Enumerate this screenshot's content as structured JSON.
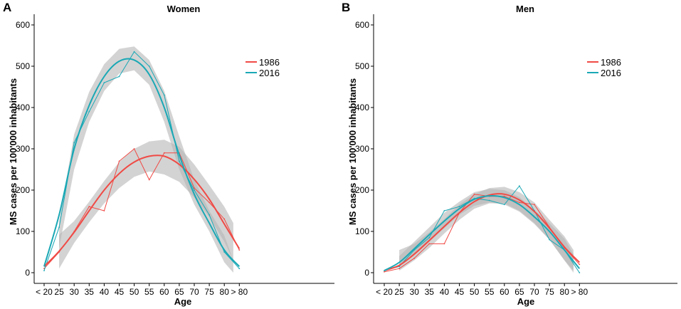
{
  "colors": {
    "s1986": "#f04a45",
    "s2016": "#1aa8b5",
    "band": "#b5b5b5"
  },
  "chart_data": [
    {
      "panel": "A",
      "title": "Women",
      "type": "line",
      "xlabel": "Age",
      "ylabel": "MS cases per 100'000 inhabitants",
      "ylim": [
        0,
        600
      ],
      "yticks": [
        0,
        100,
        200,
        300,
        400,
        500,
        600
      ],
      "categories": [
        "< 20",
        "25",
        "30",
        "35",
        "40",
        "45",
        "50",
        "55",
        "60",
        "65",
        "70",
        "75",
        "80",
        "> 80"
      ],
      "legend_position": "top-right",
      "series": [
        {
          "name": "1986",
          "color": "s1986",
          "x": [
            20,
            25,
            30,
            35,
            40,
            45,
            50,
            55,
            60,
            65,
            70,
            75,
            80,
            85
          ],
          "values": [
            10,
            50,
            100,
            160,
            150,
            270,
            300,
            225,
            290,
            290,
            205,
            170,
            130,
            55
          ],
          "fit_x": [
            20,
            25,
            30,
            35,
            40,
            45,
            50,
            55,
            60,
            65,
            70,
            75,
            80,
            85
          ],
          "fit": [
            15,
            52,
            98,
            150,
            200,
            240,
            268,
            282,
            282,
            262,
            226,
            178,
            118,
            58
          ],
          "band_x": [
            25,
            30,
            35,
            40,
            45,
            50,
            55,
            60,
            65,
            70,
            75,
            80,
            83
          ],
          "band_lo": [
            10,
            72,
            122,
            168,
            205,
            232,
            245,
            238,
            220,
            182,
            135,
            75,
            30
          ],
          "band_hi": [
            92,
            125,
            172,
            222,
            268,
            300,
            318,
            322,
            305,
            262,
            212,
            160,
            120
          ]
        },
        {
          "name": "2016",
          "color": "s2016",
          "x": [
            20,
            25,
            30,
            35,
            40,
            45,
            50,
            55,
            60,
            65,
            70,
            75,
            80,
            85
          ],
          "values": [
            5,
            110,
            315,
            390,
            460,
            475,
            535,
            500,
            430,
            270,
            200,
            140,
            50,
            10
          ],
          "fit_x": [
            20,
            25,
            30,
            35,
            40,
            45,
            50,
            55,
            60,
            65,
            70,
            75,
            80,
            85
          ],
          "fit": [
            15,
            140,
            300,
            405,
            475,
            512,
            515,
            480,
            400,
            285,
            190,
            120,
            55,
            15
          ],
          "band_x": [
            25,
            30,
            35,
            40,
            45,
            50,
            55,
            60,
            65,
            70,
            75,
            80,
            83
          ],
          "band_lo": [
            60,
            250,
            365,
            440,
            482,
            490,
            455,
            365,
            250,
            165,
            100,
            25,
            0
          ],
          "band_hi": [
            125,
            335,
            438,
            505,
            542,
            548,
            515,
            440,
            330,
            225,
            150,
            90,
            30
          ]
        }
      ]
    },
    {
      "panel": "B",
      "title": "Men",
      "type": "line",
      "xlabel": "Age",
      "ylabel": "MS cases per 100'000 inhabitants",
      "ylim": [
        0,
        600
      ],
      "yticks": [
        0,
        100,
        200,
        300,
        400,
        500,
        600
      ],
      "categories": [
        "< 20",
        "25",
        "30",
        "35",
        "40",
        "45",
        "50",
        "55",
        "60",
        "65",
        "70",
        "75",
        "80",
        "> 80"
      ],
      "legend_position": "top-right",
      "series": [
        {
          "name": "1986",
          "color": "s1986",
          "x": [
            20,
            25,
            30,
            35,
            40,
            45,
            50,
            55,
            60,
            65,
            70,
            75,
            80,
            85
          ],
          "values": [
            2,
            10,
            35,
            70,
            70,
            145,
            190,
            185,
            185,
            170,
            165,
            110,
            60,
            20
          ],
          "fit_x": [
            20,
            25,
            30,
            35,
            40,
            45,
            50,
            55,
            60,
            65,
            70,
            75,
            80,
            85
          ],
          "fit": [
            5,
            18,
            45,
            78,
            112,
            145,
            172,
            188,
            190,
            176,
            148,
            108,
            62,
            25
          ],
          "band_x": [
            25,
            30,
            35,
            40,
            45,
            50,
            55,
            60,
            65,
            70,
            75,
            80,
            83
          ],
          "band_lo": [
            5,
            30,
            60,
            95,
            128,
            155,
            168,
            168,
            150,
            120,
            80,
            30,
            5
          ],
          "band_hi": [
            55,
            70,
            98,
            130,
            165,
            190,
            205,
            208,
            195,
            170,
            128,
            88,
            55
          ]
        },
        {
          "name": "2016",
          "color": "s2016",
          "x": [
            20,
            25,
            30,
            35,
            40,
            45,
            50,
            55,
            60,
            65,
            70,
            75,
            80,
            85
          ],
          "values": [
            5,
            15,
            55,
            85,
            150,
            160,
            180,
            175,
            165,
            210,
            150,
            80,
            55,
            0
          ],
          "fit_x": [
            20,
            25,
            30,
            35,
            40,
            45,
            50,
            55,
            60,
            65,
            70,
            75,
            80,
            85
          ],
          "fit": [
            5,
            25,
            58,
            92,
            125,
            155,
            178,
            186,
            182,
            165,
            135,
            100,
            55,
            10
          ],
          "band_x": [
            25,
            30,
            35,
            40,
            45,
            50,
            55,
            60,
            65,
            70,
            75,
            80,
            83
          ],
          "band_lo": [
            15,
            42,
            75,
            108,
            140,
            162,
            170,
            165,
            148,
            118,
            80,
            30,
            0
          ],
          "band_hi": [
            40,
            75,
            110,
            145,
            172,
            195,
            203,
            200,
            183,
            152,
            120,
            82,
            45
          ]
        }
      ]
    }
  ]
}
